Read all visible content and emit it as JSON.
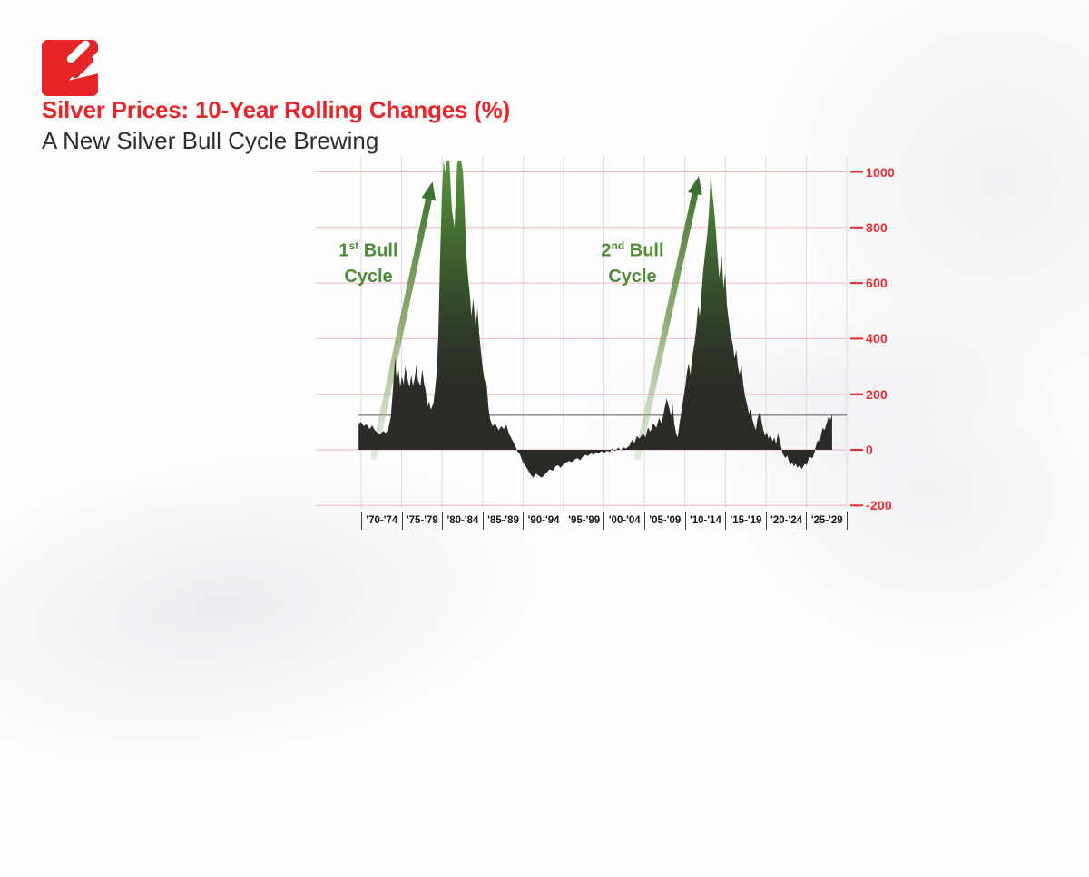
{
  "header": {
    "title": "Silver Prices: 10-Year Rolling Changes (%)",
    "subtitle": "A New Silver Bull Cycle Brewing"
  },
  "logo": {
    "name": "red-square-arrow-logo",
    "color": "#e52528"
  },
  "colors": {
    "title_red": "#e62629",
    "axis_label_red": "#ea2a2e",
    "annotation_green": "#4f8c38",
    "arrow_green_dark": "#3d7030",
    "area_dark": "#292925"
  },
  "annotations": {
    "first": {
      "number": "1",
      "ordinal": "st",
      "suffix": " Bull",
      "line2": "Cycle"
    },
    "second": {
      "number": "2",
      "ordinal": "nd",
      "suffix": " Bull",
      "line2": "Cycle"
    }
  },
  "chart_data": {
    "type": "area",
    "title": "Silver Prices: 10-Year Rolling Changes (%)",
    "series_name": "Silver price 10-year rolling change (%)",
    "x_axis_labels": [
      "'70-'74",
      "'75-'79",
      "'80-'84",
      "'85-'89",
      "'90-'94",
      "'95-'99",
      "'00-'04",
      "'05-'09",
      "'10-'14",
      "'15-'19",
      "'20-'24",
      "'25-'29"
    ],
    "y_ticks": [
      1000,
      800,
      600,
      400,
      200,
      0,
      -200
    ],
    "ylim": [
      -250,
      1050
    ],
    "clip_max": 1050,
    "grid": {
      "horizontal_color": "#f2b9b7",
      "vertical_color": "#dcdcdd",
      "tick_color": "#e8262a"
    },
    "reference_line": {
      "value": 125,
      "color": "#8f8f8f"
    },
    "area_colors": {
      "top_green": "#5e9340",
      "upper": "#4c7c35",
      "mid": "#3c5e2e",
      "low": "#2f3d29",
      "dark": "#2b2e27",
      "base": "#292925"
    },
    "arrows": [
      {
        "from": {
          "year": 1971.4,
          "value": -35
        },
        "to": {
          "year": 1978.4,
          "value": 965
        }
      },
      {
        "from": {
          "year": 2002.5,
          "value": -35
        },
        "to": {
          "year": 2009.8,
          "value": 985
        }
      }
    ],
    "peaks": [
      {
        "label": "1st Bull Cycle",
        "year": 1980,
        "value": 1050,
        "clipped": true
      },
      {
        "label": "2nd Bull Cycle",
        "year": 2011,
        "value": 1000,
        "clipped": false
      }
    ],
    "points": [
      [
        1969.7,
        95
      ],
      [
        1970.0,
        100
      ],
      [
        1970.3,
        85
      ],
      [
        1970.6,
        92
      ],
      [
        1971.0,
        75
      ],
      [
        1971.3,
        88
      ],
      [
        1971.6,
        70
      ],
      [
        1971.9,
        62
      ],
      [
        1972.2,
        55
      ],
      [
        1972.6,
        68
      ],
      [
        1972.9,
        60
      ],
      [
        1973.2,
        75
      ],
      [
        1973.5,
        120
      ],
      [
        1973.7,
        200
      ],
      [
        1974.0,
        335
      ],
      [
        1974.2,
        240
      ],
      [
        1974.4,
        290
      ],
      [
        1974.6,
        225
      ],
      [
        1974.8,
        265
      ],
      [
        1975.0,
        235
      ],
      [
        1975.2,
        300
      ],
      [
        1975.5,
        250
      ],
      [
        1975.7,
        225
      ],
      [
        1975.9,
        270
      ],
      [
        1976.1,
        230
      ],
      [
        1976.3,
        255
      ],
      [
        1976.5,
        305
      ],
      [
        1976.7,
        250
      ],
      [
        1977.0,
        230
      ],
      [
        1977.2,
        290
      ],
      [
        1977.4,
        240
      ],
      [
        1977.6,
        215
      ],
      [
        1977.8,
        155
      ],
      [
        1978.0,
        175
      ],
      [
        1978.2,
        145
      ],
      [
        1978.5,
        165
      ],
      [
        1978.7,
        215
      ],
      [
        1978.9,
        280
      ],
      [
        1979.1,
        420
      ],
      [
        1979.3,
        700
      ],
      [
        1979.5,
        900
      ],
      [
        1979.7,
        1045
      ],
      [
        1979.9,
        1000
      ],
      [
        1980.1,
        1048
      ],
      [
        1980.4,
        1045
      ],
      [
        1980.7,
        860
      ],
      [
        1981.0,
        800
      ],
      [
        1981.3,
        1030
      ],
      [
        1981.5,
        1048
      ],
      [
        1981.8,
        1040
      ],
      [
        1982.0,
        1000
      ],
      [
        1982.2,
        860
      ],
      [
        1982.4,
        700
      ],
      [
        1982.6,
        620
      ],
      [
        1982.8,
        560
      ],
      [
        1983.0,
        480
      ],
      [
        1983.2,
        545
      ],
      [
        1983.5,
        440
      ],
      [
        1983.7,
        510
      ],
      [
        1983.9,
        420
      ],
      [
        1984.1,
        360
      ],
      [
        1984.3,
        300
      ],
      [
        1984.5,
        255
      ],
      [
        1984.8,
        230
      ],
      [
        1985.0,
        150
      ],
      [
        1985.2,
        110
      ],
      [
        1985.5,
        85
      ],
      [
        1985.8,
        95
      ],
      [
        1986.2,
        70
      ],
      [
        1986.5,
        85
      ],
      [
        1986.8,
        75
      ],
      [
        1987.1,
        90
      ],
      [
        1987.4,
        60
      ],
      [
        1987.8,
        35
      ],
      [
        1988.1,
        20
      ],
      [
        1988.4,
        -5
      ],
      [
        1988.7,
        -15
      ],
      [
        1989.0,
        -40
      ],
      [
        1989.4,
        -60
      ],
      [
        1989.7,
        -75
      ],
      [
        1990.0,
        -90
      ],
      [
        1990.3,
        -100
      ],
      [
        1990.6,
        -85
      ],
      [
        1991.0,
        -95
      ],
      [
        1991.3,
        -100
      ],
      [
        1991.6,
        -90
      ],
      [
        1991.9,
        -80
      ],
      [
        1992.2,
        -70
      ],
      [
        1992.6,
        -75
      ],
      [
        1992.9,
        -60
      ],
      [
        1993.2,
        -55
      ],
      [
        1993.5,
        -65
      ],
      [
        1993.9,
        -50
      ],
      [
        1994.2,
        -45
      ],
      [
        1994.5,
        -40
      ],
      [
        1994.8,
        -45
      ],
      [
        1995.1,
        -35
      ],
      [
        1995.5,
        -30
      ],
      [
        1995.8,
        -38
      ],
      [
        1996.1,
        -25
      ],
      [
        1996.4,
        -18
      ],
      [
        1996.7,
        -22
      ],
      [
        1997.1,
        -12
      ],
      [
        1997.4,
        -18
      ],
      [
        1997.7,
        -8
      ],
      [
        1998.0,
        -12
      ],
      [
        1998.3,
        -5
      ],
      [
        1998.7,
        -10
      ],
      [
        1999.0,
        -3
      ],
      [
        1999.3,
        -8
      ],
      [
        1999.6,
        5
      ],
      [
        1999.9,
        -5
      ],
      [
        2000.3,
        8
      ],
      [
        2000.6,
        -3
      ],
      [
        2000.9,
        10
      ],
      [
        2001.2,
        4
      ],
      [
        2001.6,
        15
      ],
      [
        2001.9,
        35
      ],
      [
        2002.2,
        25
      ],
      [
        2002.5,
        50
      ],
      [
        2002.8,
        40
      ],
      [
        2003.2,
        60
      ],
      [
        2003.5,
        45
      ],
      [
        2003.8,
        80
      ],
      [
        2004.1,
        65
      ],
      [
        2004.4,
        95
      ],
      [
        2004.8,
        80
      ],
      [
        2005.1,
        115
      ],
      [
        2005.4,
        95
      ],
      [
        2005.7,
        140
      ],
      [
        2006.0,
        185
      ],
      [
        2006.3,
        150
      ],
      [
        2006.5,
        120
      ],
      [
        2006.7,
        165
      ],
      [
        2006.9,
        95
      ],
      [
        2007.1,
        60
      ],
      [
        2007.3,
        45
      ],
      [
        2007.5,
        90
      ],
      [
        2007.8,
        150
      ],
      [
        2008.0,
        190
      ],
      [
        2008.2,
        230
      ],
      [
        2008.4,
        280
      ],
      [
        2008.6,
        310
      ],
      [
        2008.8,
        270
      ],
      [
        2009.0,
        330
      ],
      [
        2009.3,
        390
      ],
      [
        2009.5,
        440
      ],
      [
        2009.7,
        520
      ],
      [
        2009.9,
        480
      ],
      [
        2010.1,
        560
      ],
      [
        2010.3,
        640
      ],
      [
        2010.5,
        700
      ],
      [
        2010.8,
        780
      ],
      [
        2011.0,
        860
      ],
      [
        2011.2,
        1000
      ],
      [
        2011.4,
        920
      ],
      [
        2011.6,
        860
      ],
      [
        2011.8,
        790
      ],
      [
        2012.0,
        700
      ],
      [
        2012.2,
        620
      ],
      [
        2012.5,
        700
      ],
      [
        2012.7,
        580
      ],
      [
        2012.9,
        640
      ],
      [
        2013.1,
        520
      ],
      [
        2013.3,
        470
      ],
      [
        2013.5,
        420
      ],
      [
        2013.8,
        380
      ],
      [
        2014.0,
        330
      ],
      [
        2014.2,
        360
      ],
      [
        2014.4,
        300
      ],
      [
        2014.6,
        270
      ],
      [
        2014.8,
        310
      ],
      [
        2015.0,
        240
      ],
      [
        2015.2,
        200
      ],
      [
        2015.5,
        160
      ],
      [
        2015.7,
        130
      ],
      [
        2015.9,
        150
      ],
      [
        2016.1,
        110
      ],
      [
        2016.3,
        90
      ],
      [
        2016.5,
        70
      ],
      [
        2016.7,
        110
      ],
      [
        2017.0,
        140
      ],
      [
        2017.2,
        100
      ],
      [
        2017.4,
        70
      ],
      [
        2017.6,
        50
      ],
      [
        2017.8,
        65
      ],
      [
        2018.0,
        40
      ],
      [
        2018.2,
        55
      ],
      [
        2018.5,
        30
      ],
      [
        2018.7,
        45
      ],
      [
        2018.9,
        20
      ],
      [
        2019.1,
        60
      ],
      [
        2019.3,
        35
      ],
      [
        2019.5,
        10
      ],
      [
        2019.7,
        -15
      ],
      [
        2020.0,
        -30
      ],
      [
        2020.2,
        -20
      ],
      [
        2020.4,
        -40
      ],
      [
        2020.6,
        -55
      ],
      [
        2020.8,
        -45
      ],
      [
        2021.0,
        -60
      ],
      [
        2021.2,
        -50
      ],
      [
        2021.4,
        -65
      ],
      [
        2021.7,
        -55
      ],
      [
        2021.9,
        -70
      ],
      [
        2022.1,
        -60
      ],
      [
        2022.3,
        -50
      ],
      [
        2022.5,
        -55
      ],
      [
        2022.7,
        -35
      ],
      [
        2022.9,
        -25
      ],
      [
        2023.2,
        -30
      ],
      [
        2023.4,
        -10
      ],
      [
        2023.6,
        15
      ],
      [
        2023.8,
        35
      ],
      [
        2024.0,
        25
      ],
      [
        2024.2,
        55
      ],
      [
        2024.4,
        80
      ],
      [
        2024.6,
        70
      ],
      [
        2024.9,
        100
      ],
      [
        2025.1,
        122
      ],
      [
        2025.3,
        108
      ],
      [
        2025.5,
        128
      ]
    ]
  }
}
